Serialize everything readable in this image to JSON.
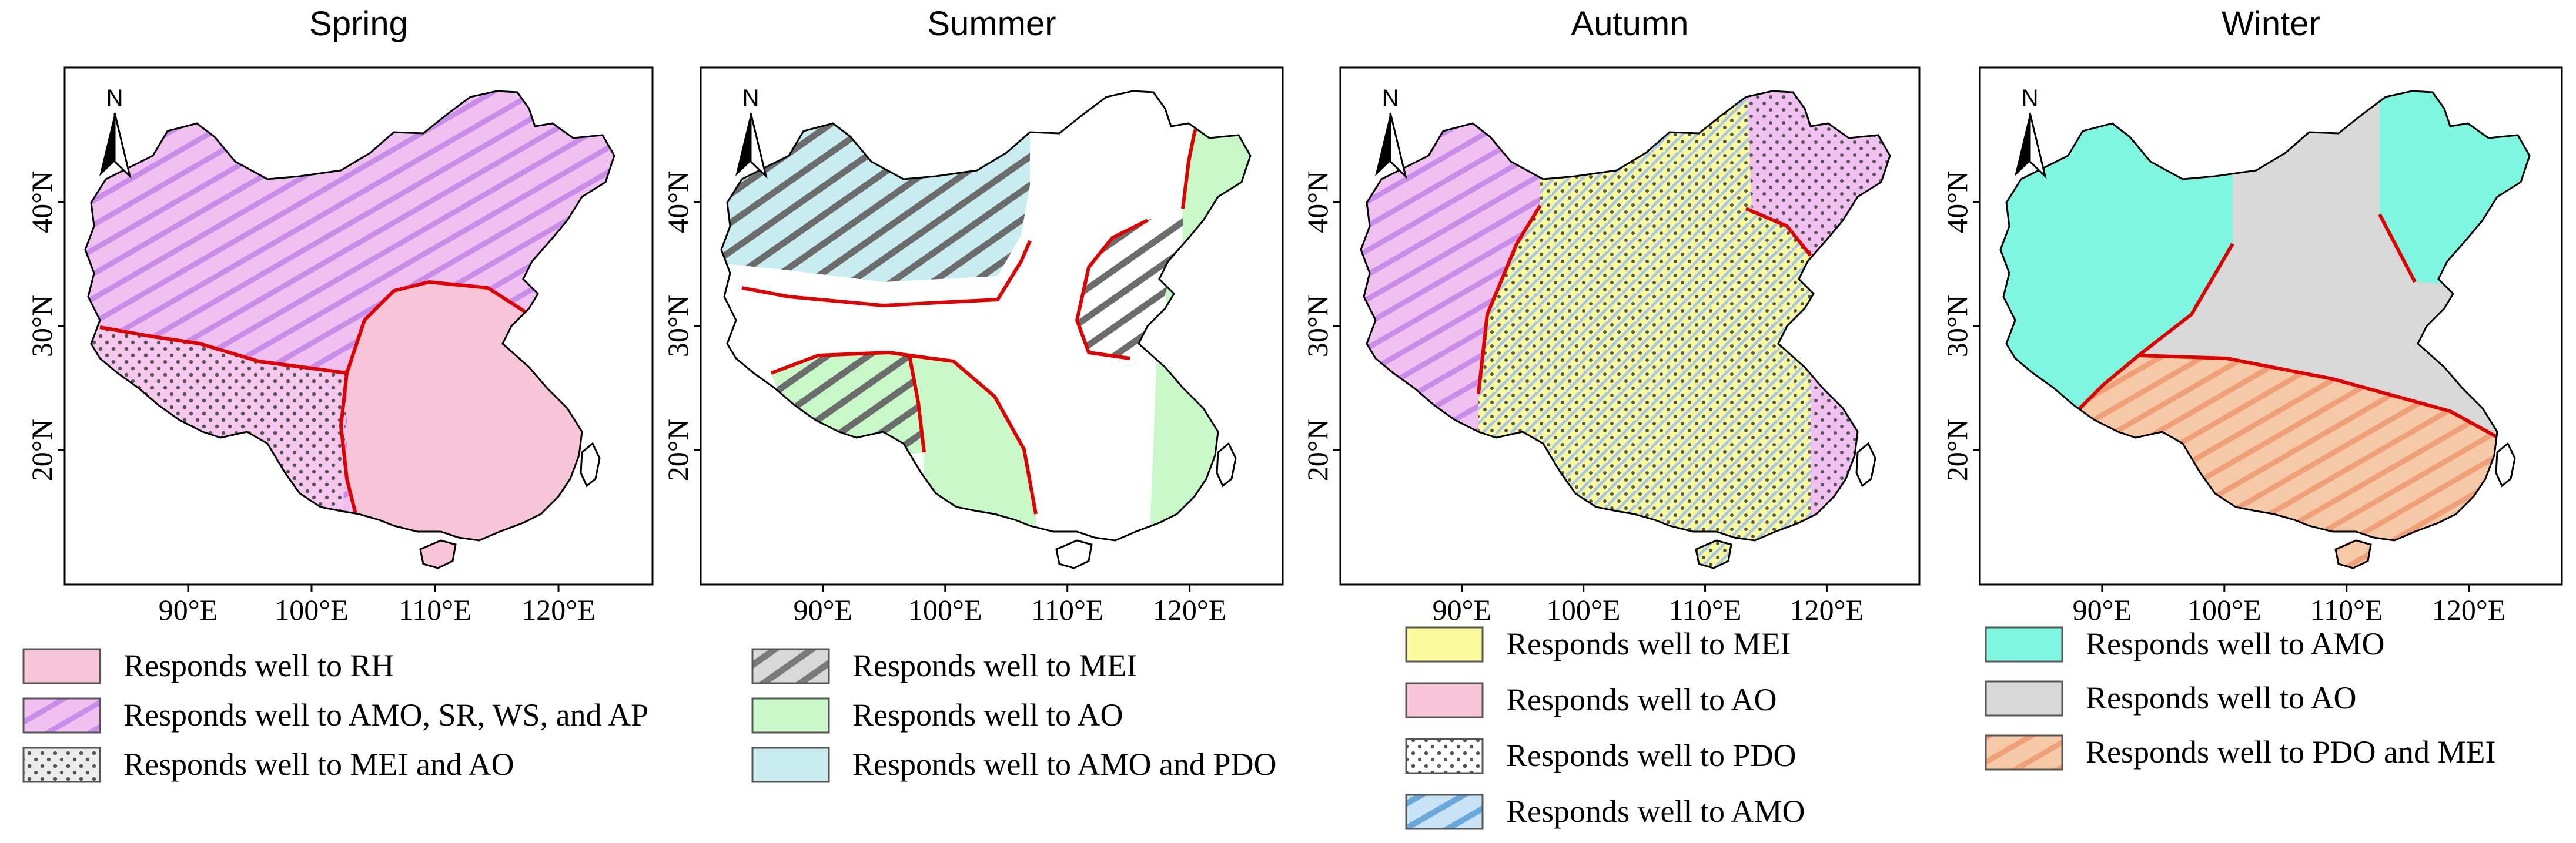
{
  "figure_type": "seasonal regional response maps of China",
  "colors": {
    "rh": "#f8c4d8",
    "amo_purple": "#f0c0f0",
    "mei_ao_dots": "#f6c8ee",
    "mei_hatch": "#c8c8c8",
    "ao_green": "#c8f8c8",
    "amo_pdo_blue": "#c8ecf0",
    "mei_yellow": "#fafa9c",
    "pdo_dots": "#ffffff",
    "amo_blue_hatch": "#c8e2f6",
    "amo_teal": "#7ff6e0",
    "ao_gray": "#d8d8d8",
    "pdo_mei_orange": "#f6c9a8",
    "boundary_red": "#e00000"
  },
  "x_ticks": [
    "90°E",
    "100°E",
    "110°E",
    "120°E"
  ],
  "y_ticks": [
    "40°N",
    "30°N",
    "20°N"
  ],
  "north_arrow": {
    "label": "N",
    "icon": "north-arrow-icon"
  },
  "panels": [
    {
      "id": "spring",
      "title": "Spring",
      "regions": [
        {
          "id": "rh",
          "fill": "#f8c4d8",
          "pattern": "solid"
        },
        {
          "id": "amo_sr_ws_ap",
          "fill": "#f0c0f0",
          "pattern": "hatch-purple"
        },
        {
          "id": "mei_ao",
          "fill": "#f6c8ee",
          "pattern": "dots"
        }
      ],
      "legend": [
        {
          "label": "Responds well to RH",
          "swatch": "solid-pink"
        },
        {
          "label": "Responds well to AMO, SR, WS, and AP",
          "swatch": "hatch-purple"
        },
        {
          "label": "Responds well to MEI and AO",
          "swatch": "dots-gray"
        }
      ]
    },
    {
      "id": "summer",
      "title": "Summer",
      "regions": [
        {
          "id": "amo_pdo",
          "fill": "#c8ecf0",
          "pattern": "hatch-dark"
        },
        {
          "id": "mei",
          "fill": "#ffffff",
          "pattern": "hatch-dark"
        },
        {
          "id": "ao",
          "fill": "#c8f8c8",
          "pattern": "solid"
        }
      ],
      "legend": [
        {
          "label": "Responds well to MEI",
          "swatch": "hatch-gray"
        },
        {
          "label": "Responds well to AO",
          "swatch": "solid-green"
        },
        {
          "label": "Responds well to AMO and PDO",
          "swatch": "solid-lightblue"
        }
      ]
    },
    {
      "id": "autumn",
      "title": "Autumn",
      "regions": [
        {
          "id": "mei",
          "fill": "#fafa9c",
          "pattern": "solid"
        },
        {
          "id": "ao",
          "fill": "#f0c0f0",
          "pattern": "solid"
        },
        {
          "id": "pdo",
          "fill": "none",
          "pattern": "dots"
        },
        {
          "id": "amo",
          "fill": "none",
          "pattern": "hatch-blue"
        }
      ],
      "legend": [
        {
          "label": "Responds well to MEI",
          "swatch": "solid-yellow"
        },
        {
          "label": "Responds well to AO",
          "swatch": "solid-pink"
        },
        {
          "label": "Responds well to PDO",
          "swatch": "dots-white"
        },
        {
          "label": "Responds well to AMO",
          "swatch": "hatch-blue"
        }
      ]
    },
    {
      "id": "winter",
      "title": "Winter",
      "regions": [
        {
          "id": "amo",
          "fill": "#7ff6e0",
          "pattern": "solid"
        },
        {
          "id": "ao",
          "fill": "#d8d8d8",
          "pattern": "solid"
        },
        {
          "id": "pdo_mei",
          "fill": "#f6c9a8",
          "pattern": "hatch-orange"
        }
      ],
      "legend": [
        {
          "label": "Responds well to AMO",
          "swatch": "solid-teal"
        },
        {
          "label": "Responds well to AO",
          "swatch": "solid-gray"
        },
        {
          "label": "Responds well to PDO and MEI",
          "swatch": "hatch-orange"
        }
      ]
    }
  ]
}
